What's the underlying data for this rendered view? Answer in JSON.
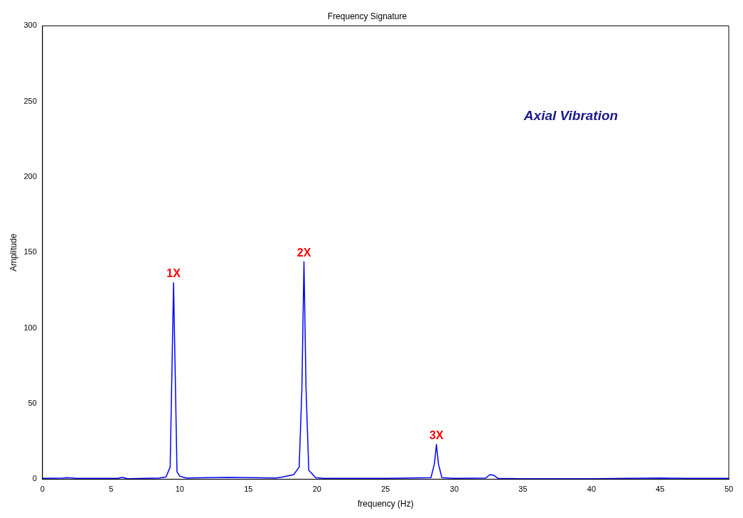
{
  "chart_data": {
    "type": "line",
    "title": "Frequency Signature",
    "xlabel": "frequency (Hz)",
    "ylabel": "Amplitude",
    "xlim": [
      0,
      50
    ],
    "xticks": [
      0,
      5,
      10,
      15,
      20,
      25,
      30,
      35,
      40,
      45,
      50
    ],
    "ylim": [
      0,
      300
    ],
    "yticks": [
      0,
      50,
      100,
      150,
      200,
      250,
      300
    ],
    "grid": false,
    "legend": false,
    "marker": "none",
    "line_style": "solid",
    "series": [
      {
        "color": "#0000ff",
        "x": [
          0,
          1.5,
          1.8,
          2.5,
          5.5,
          5.8,
          6.2,
          8.5,
          9.0,
          9.3,
          9.45,
          9.55,
          9.65,
          9.8,
          10,
          10.5,
          13.5,
          17,
          17.5,
          18.3,
          18.7,
          18.9,
          19.05,
          19.2,
          19.4,
          19.9,
          20.5,
          25,
          28.3,
          28.55,
          28.7,
          28.85,
          29.1,
          30,
          32.3,
          32.6,
          32.9,
          33.2,
          35,
          40,
          45,
          47,
          50
        ],
        "values": [
          0.5,
          0.8,
          1,
          0.5,
          0.5,
          1.2,
          0.3,
          0.8,
          1.5,
          8,
          80,
          130,
          80,
          5,
          2,
          0.8,
          1.2,
          0.8,
          1.5,
          3,
          8,
          60,
          144,
          60,
          6,
          1,
          0.5,
          0.5,
          1,
          10,
          23,
          10,
          1,
          0.5,
          0.8,
          3,
          2.5,
          0.5,
          0.3,
          0.3,
          0.8,
          0.5,
          0.5
        ]
      }
    ],
    "annotations": [
      {
        "text": "1X",
        "x": 9.55,
        "y": 130
      },
      {
        "text": "2X",
        "x": 19.05,
        "y": 144
      },
      {
        "text": "3X",
        "x": 28.7,
        "y": 23
      },
      "Axial Vibration"
    ]
  }
}
